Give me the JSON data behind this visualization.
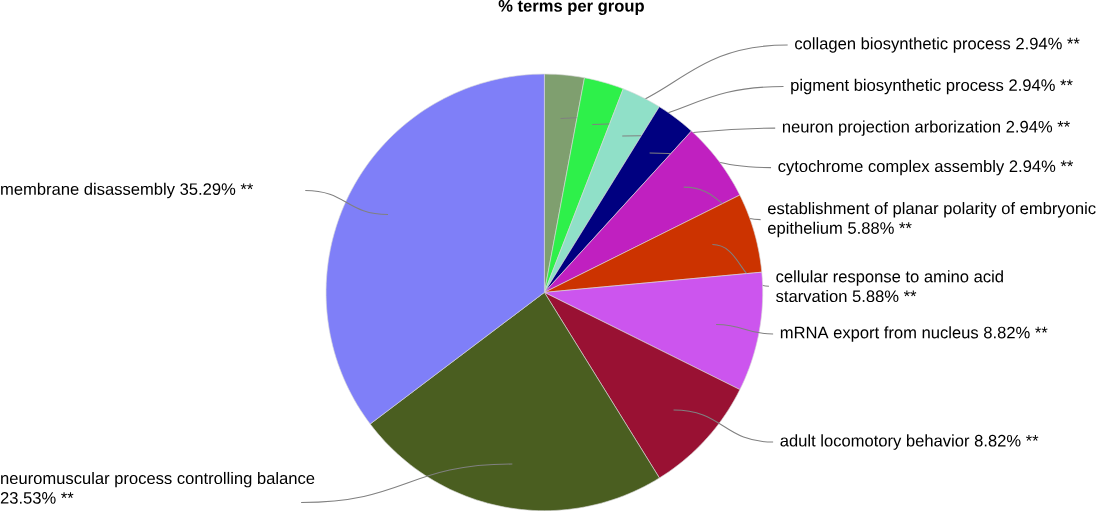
{
  "chart_data": {
    "type": "pie",
    "title": "% terms per group",
    "categories": [
      "collagen biosynthetic process",
      "pigment biosynthetic process",
      "neuron projection arborization",
      "cytochrome complex assembly",
      "establishment of planar polarity of embryonic epithelium",
      "cellular response to amino acid starvation",
      "mRNA export from nucleus",
      "adult locomotory behavior",
      "neuromuscular process controlling balance",
      "membrane disassembly"
    ],
    "values": [
      2.94,
      2.94,
      2.94,
      2.94,
      5.88,
      5.88,
      8.82,
      8.82,
      23.53,
      35.29
    ],
    "value_labels": [
      "2.94% **",
      "2.94% **",
      "2.94% **",
      "2.94% **",
      "5.88% **",
      "5.88% **",
      "8.82% **",
      "8.82% **",
      "23.53% **",
      "35.29% **"
    ],
    "colors": [
      "#7f9f6f",
      "#2ef04a",
      "#90e0c8",
      "#000080",
      "#c020c0",
      "#cc3300",
      "#cc55ee",
      "#991133",
      "#4a5e20",
      "#7f7ff8"
    ]
  }
}
